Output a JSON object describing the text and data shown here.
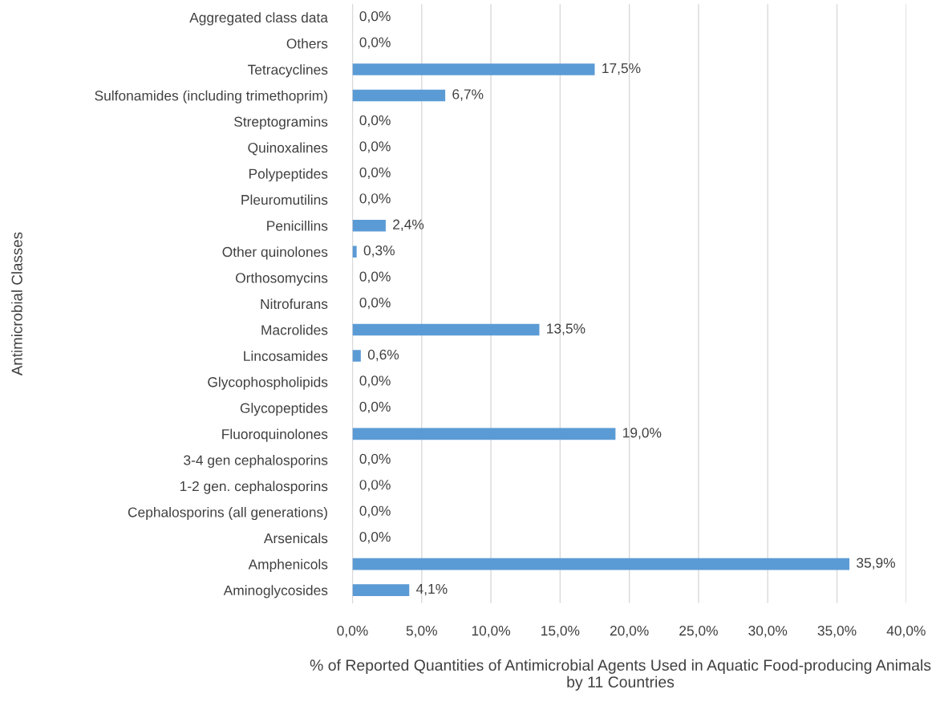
{
  "chart_data": {
    "type": "bar",
    "orientation": "horizontal",
    "xlabel": "% of Reported Quantities of Antimicrobial Agents Used in Aquatic Food-producing Animals by 11 Countries",
    "ylabel": "Antimicrobial Classes",
    "categories": [
      "Aggregated class data",
      "Others",
      "Tetracyclines",
      "Sulfonamides (including trimethoprim)",
      "Streptogramins",
      "Quinoxalines",
      "Polypeptides",
      "Pleuromutilins",
      "Penicillins",
      "Other quinolones",
      "Orthosomycins",
      "Nitrofurans",
      "Macrolides",
      "Lincosamides",
      "Glycophospholipids",
      "Glycopeptides",
      "Fluoroquinolones",
      "3-4 gen cephalosporins",
      "1-2 gen. cephalosporins",
      "Cephalosporins (all generations)",
      "Arsenicals",
      "Amphenicols",
      "Aminoglycosides"
    ],
    "values": [
      0,
      0,
      17.5,
      6.7,
      0,
      0,
      0,
      0,
      2.4,
      0.3,
      0,
      0,
      13.5,
      0.6,
      0,
      0,
      19.0,
      0,
      0,
      0,
      0,
      35.9,
      4.1
    ],
    "value_labels": [
      "0,0%",
      "0,0%",
      "17,5%",
      "6,7%",
      "0,0%",
      "0,0%",
      "0,0%",
      "0,0%",
      "2,4%",
      "0,3%",
      "0,0%",
      "0,0%",
      "13,5%",
      "0,6%",
      "0,0%",
      "0,0%",
      "19,0%",
      "0,0%",
      "0,0%",
      "0,0%",
      "0,0%",
      "35,9%",
      "4,1%"
    ],
    "color": "#5b9bd5",
    "xlim": [
      0,
      40
    ],
    "xticks": [
      {
        "value": 0,
        "label": "0,0%"
      },
      {
        "value": 5,
        "label": "5,0%"
      },
      {
        "value": 10,
        "label": "10,0%"
      },
      {
        "value": 15,
        "label": "15,0%"
      },
      {
        "value": 20,
        "label": "20,0%"
      },
      {
        "value": 25,
        "label": "25,0%"
      },
      {
        "value": 30,
        "label": "30,0%"
      },
      {
        "value": 35,
        "label": "35,0%"
      },
      {
        "value": 40,
        "label": "40,0%"
      }
    ],
    "grid": "x",
    "legend": false
  }
}
